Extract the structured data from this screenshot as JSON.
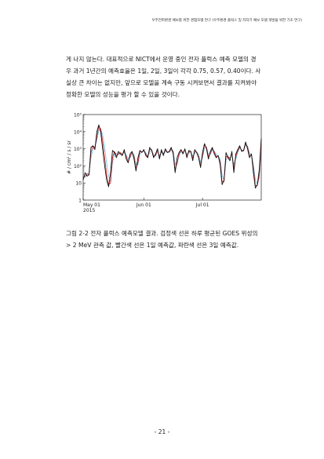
{
  "header": "우주전파환경 예보를 위한 경험모델 연구 (우주환경 플럭스 및 지자기 예보 모델 개발을 위한 기초 연구)",
  "paragraph": [
    "게 나지 않는다. 대표적으로 NICT에서 운영 중인 전자 플럭스 예측 모델의 경",
    "우 과거 1년간의 예측효율은 1일, 2일, 3일이 각각 0.75, 0.57, 0.40이다. 사",
    "실상 큰 차이는 없지만, 앞으로 모델을 계속 구동 시켜보면서 결과를 지켜봐야",
    "정확한 모델의 성능을 평가 할 수 있을 것이다."
  ],
  "colors": {
    "observed": "#111111",
    "day1": "#d42020",
    "day3": "#2a9fd6"
  },
  "chart_data": {
    "type": "line",
    "ylabel": "# / cm² / s / sr",
    "yscale": "log",
    "y_ticks": [
      {
        "value": 1,
        "label": "1"
      },
      {
        "value": 10,
        "label": "10"
      },
      {
        "value": 100,
        "label": "10²"
      },
      {
        "value": 1000,
        "label": "10³"
      },
      {
        "value": 10000,
        "label": "10⁴"
      },
      {
        "value": 100000,
        "label": "10⁵"
      }
    ],
    "ylim": [
      1,
      100000
    ],
    "x_ticks": [
      {
        "index": 0,
        "label": "May 01",
        "sublabel": "2015"
      },
      {
        "index": 31,
        "label": "Jun 01",
        "sublabel": ""
      },
      {
        "index": 61,
        "label": "Jul 01",
        "sublabel": ""
      }
    ],
    "xlim": [
      0,
      91
    ],
    "series": [
      {
        "key": "observed",
        "name": "",
        "values": [
          15,
          40,
          25,
          30,
          1200,
          1500,
          900,
          10000,
          25000,
          9000,
          900,
          100,
          15,
          6,
          40,
          800,
          600,
          300,
          700,
          500,
          400,
          900,
          250,
          150,
          500,
          700,
          250,
          50,
          300,
          800,
          600,
          900,
          400,
          300,
          1200,
          800,
          300,
          500,
          1000,
          250,
          900,
          400,
          1000,
          600,
          700,
          1200,
          500,
          40,
          300,
          600,
          900,
          500,
          1000,
          300,
          800,
          700,
          200,
          900,
          600,
          300,
          80,
          600,
          2000,
          1000,
          250,
          700,
          1200,
          500,
          300,
          400,
          120,
          8,
          15,
          600,
          300,
          200,
          700,
          40,
          500,
          900,
          1500,
          700,
          800,
          2500,
          1000,
          300,
          500,
          40,
          5,
          8,
          60,
          4000
        ]
      },
      {
        "key": "day1",
        "name": "",
        "values": [
          20,
          25,
          35,
          30,
          600,
          1400,
          1200,
          5000,
          20000,
          14000,
          2500,
          300,
          30,
          8,
          10,
          300,
          700,
          400,
          500,
          600,
          450,
          700,
          350,
          180,
          350,
          650,
          350,
          70,
          150,
          700,
          650,
          800,
          500,
          320,
          900,
          900,
          350,
          400,
          900,
          320,
          700,
          500,
          800,
          650,
          650,
          1000,
          650,
          60,
          150,
          500,
          800,
          600,
          850,
          400,
          650,
          700,
          280,
          700,
          650,
          350,
          100,
          400,
          1600,
          1200,
          350,
          550,
          1000,
          650,
          350,
          380,
          180,
          12,
          12,
          350,
          350,
          250,
          550,
          70,
          350,
          750,
          1300,
          800,
          750,
          2000,
          1300,
          400,
          450,
          70,
          7,
          7,
          30,
          2000
        ]
      },
      {
        "key": "day3",
        "name": "",
        "values": [
          25,
          22,
          30,
          40,
          300,
          900,
          1400,
          3000,
          12000,
          15000,
          6000,
          1200,
          150,
          25,
          12,
          150,
          500,
          550,
          450,
          550,
          500,
          600,
          450,
          250,
          300,
          550,
          450,
          120,
          120,
          500,
          650,
          700,
          600,
          380,
          600,
          850,
          450,
          380,
          700,
          420,
          600,
          550,
          650,
          650,
          620,
          850,
          750,
          120,
          120,
          380,
          650,
          650,
          750,
          500,
          550,
          650,
          380,
          550,
          650,
          450,
          160,
          300,
          1100,
          1300,
          500,
          450,
          850,
          750,
          450,
          380,
          250,
          30,
          15,
          200,
          380,
          300,
          450,
          120,
          250,
          600,
          1100,
          900,
          750,
          1600,
          1400,
          600,
          450,
          120,
          15,
          9,
          20,
          900
        ]
      }
    ]
  },
  "caption": [
    "그림 2-2 전자 플럭스 예측모델 결과. 검정색 선은 하루 평균된 GOES 위성의",
    "> 2 MeV 관측 값, 빨간색 선은 1일 예측값, 파란색 선은 3일 예측값."
  ],
  "page_number": "- 21 -"
}
